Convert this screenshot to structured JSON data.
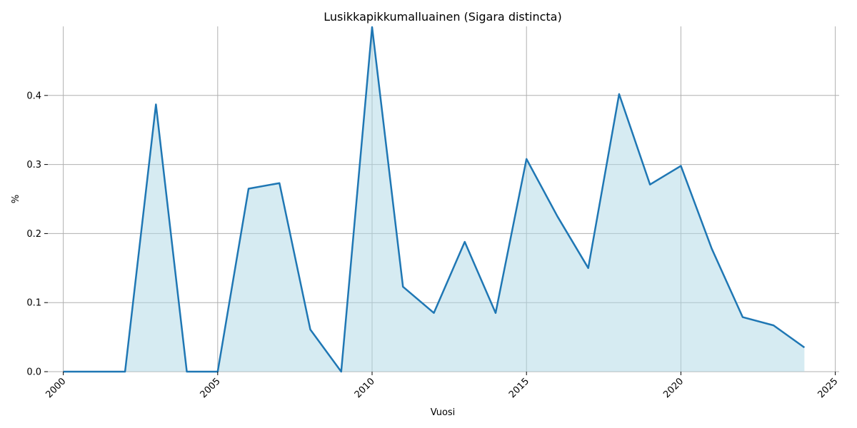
{
  "chart_data": {
    "type": "area",
    "title": "Lusikkapikkumalluainen (Sigara distincta)",
    "xlabel": "Vuosi",
    "ylabel": "%",
    "xlim": [
      2000,
      2025
    ],
    "ylim": [
      0,
      0.5
    ],
    "x_ticks": [
      2000,
      2005,
      2010,
      2015,
      2020,
      2025
    ],
    "y_ticks": [
      0.0,
      0.1,
      0.2,
      0.3,
      0.4
    ],
    "y_tick_labels": [
      "0.0",
      "0.1",
      "0.2",
      "0.3",
      "0.4"
    ],
    "grid": true,
    "x": [
      2000,
      2001,
      2002,
      2003,
      2004,
      2005,
      2006,
      2007,
      2008,
      2009,
      2010,
      2011,
      2012,
      2013,
      2014,
      2015,
      2016,
      2017,
      2018,
      2019,
      2020,
      2021,
      2022,
      2023,
      2024
    ],
    "values": [
      0,
      0,
      0,
      0.387,
      0,
      0,
      0.265,
      0.273,
      0.061,
      0,
      0.499,
      0.123,
      0.085,
      0.188,
      0.085,
      0.308,
      0.225,
      0.15,
      0.402,
      0.271,
      0.298,
      0.178,
      0.079,
      0.067,
      0.035
    ],
    "line_color": "#1f77b4",
    "fill_color": "#add8e6"
  }
}
